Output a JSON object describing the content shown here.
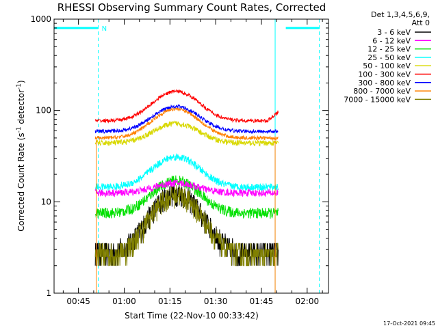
{
  "chart_data": {
    "type": "line",
    "title": "RHESSI Observing Summary Count Rates, Corrected",
    "xlabel": "Start Time (22-Nov-10 00:33:42)",
    "ylabel_prefix": "Corrected Count Rate (s",
    "ylabel_sup1": "-1",
    "ylabel_mid": " detector",
    "ylabel_sup2": "-1",
    "ylabel_suffix": ")",
    "ylog": true,
    "ylim": [
      1,
      1000
    ],
    "x_units": "minutes since 00:00 UT",
    "xlim": [
      37,
      127
    ],
    "x_ticks": [
      {
        "value": 45,
        "label": "00:45"
      },
      {
        "value": 60,
        "label": "01:00"
      },
      {
        "value": 75,
        "label": "01:15"
      },
      {
        "value": 90,
        "label": "01:30"
      },
      {
        "value": 105,
        "label": "01:45"
      },
      {
        "value": 120,
        "label": "02:00"
      }
    ],
    "y_ticks": [
      {
        "value": 1,
        "label": "1"
      },
      {
        "value": 10,
        "label": "10"
      },
      {
        "value": 100,
        "label": "100"
      },
      {
        "value": 1000,
        "label": "1000"
      }
    ],
    "data_start": 50.5,
    "data_end": 110.5,
    "peak_time": 77,
    "legend_header": [
      "Det 1,3,4,5,6,9,",
      "Att 0"
    ],
    "series": [
      {
        "name": "3 - 6 keV",
        "color": "#000000",
        "base": 2.8,
        "peak": 12.5,
        "noise": 0.1
      },
      {
        "name": "6 - 12 keV",
        "color": "#ff00ff",
        "base": 12.5,
        "peak": 16,
        "noise": 0.04
      },
      {
        "name": "12 - 25 keV",
        "color": "#00e000",
        "base": 7.5,
        "peak": 17,
        "noise": 0.06
      },
      {
        "name": "25 - 50 keV",
        "color": "#00ffff",
        "base": 14.5,
        "peak": 31,
        "noise": 0.04
      },
      {
        "name": "50 - 100 keV",
        "color": "#d8d800",
        "base": 44,
        "peak": 72,
        "noise": 0.03
      },
      {
        "name": "100 - 300 keV",
        "color": "#ff0000",
        "base": 77,
        "peak": 162,
        "noise": 0.02
      },
      {
        "name": "300 - 800 keV",
        "color": "#0000ff",
        "base": 59,
        "peak": 111,
        "noise": 0.02
      },
      {
        "name": "800 - 7000 keV",
        "color": "#ff8000",
        "base": 50,
        "peak": 104,
        "noise": 0.02
      },
      {
        "name": "7000 - 15000 keV",
        "color": "#808000",
        "base": 2.6,
        "peak": 12,
        "noise": 0.1
      }
    ],
    "annotations": {
      "attenuator_label": "N",
      "night_level": 800,
      "night_segments": [
        [
          37,
          51.5
        ],
        [
          113,
          124
        ]
      ],
      "saa_lines_dashed": [
        51.5,
        124
      ],
      "saa_lines_solid": [
        37,
        109.5
      ]
    },
    "footer": "17-Oct-2021 09:45"
  }
}
